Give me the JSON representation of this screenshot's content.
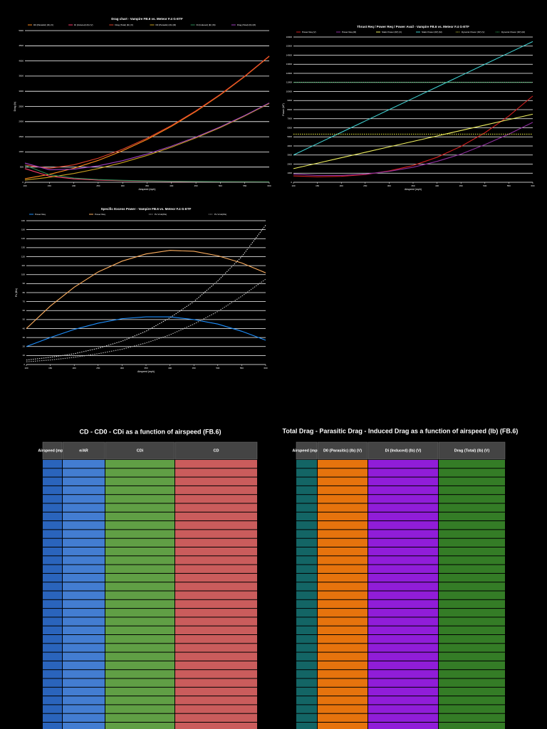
{
  "chart_data": [
    {
      "type": "line",
      "title": "Drag chart - Vampire FB.6 vs. Meteor F.4 G-ETF",
      "x_label": "Airspeed (mph)",
      "y_label": "Drag (lb)",
      "x": [
        100,
        150,
        200,
        250,
        300,
        350,
        400,
        450,
        500,
        550,
        600
      ],
      "xlim": [
        100,
        600
      ],
      "xticks": [
        100,
        150,
        200,
        250,
        300,
        350,
        400,
        450,
        500,
        550,
        600
      ],
      "ylim": [
        0,
        5000
      ],
      "yticks": [
        0,
        500,
        1000,
        1500,
        2000,
        2500,
        3000,
        3500,
        4000,
        4500,
        5000
      ],
      "grid": true,
      "series": [
        {
          "name": "D0 (Parasitic) (lb) (V)",
          "color": "#ff8c1a",
          "values": [
            115,
            259,
            461,
            720,
            1038,
            1412,
            1844,
            2334,
            2882,
            3487,
            4150
          ]
        },
        {
          "name": "Di (Induced) (lb) (V)",
          "color": "#ff3b6b",
          "values": [
            450,
            200,
            113,
            72,
            50,
            37,
            28,
            22,
            18,
            15,
            13
          ]
        },
        {
          "name": "Drag (Total) (lb) (V)",
          "color": "#e0402a",
          "values": [
            565,
            459,
            574,
            792,
            1088,
            1449,
            1872,
            2356,
            2900,
            3502,
            4163
          ]
        },
        {
          "name": "D0 (Parasitic) (lb) (M)",
          "color": "#c8a020",
          "values": [
            72,
            163,
            289,
            451,
            650,
            885,
            1156,
            1463,
            1806,
            2185,
            2600
          ]
        },
        {
          "name": "Di (Induced) (lb) (M)",
          "color": "#2e8b57",
          "values": [
            560,
            249,
            140,
            90,
            62,
            46,
            35,
            28,
            22,
            19,
            16
          ]
        },
        {
          "name": "Drag (Total) (lb) (M)",
          "color": "#a040c0",
          "values": [
            632,
            412,
            429,
            541,
            712,
            931,
            1191,
            1491,
            1828,
            2204,
            2616
          ]
        }
      ]
    },
    {
      "type": "line",
      "title": "Thrust Req / Power Req / Power Avail - Vampire FB.6 vs. Meteor F.4 G-ETF",
      "x_label": "Airspeed (mph)",
      "y_label": "Power (hP)",
      "x": [
        100,
        150,
        200,
        250,
        300,
        350,
        400,
        450,
        500,
        550,
        600
      ],
      "xlim": [
        100,
        600
      ],
      "xticks": [
        100,
        150,
        200,
        250,
        300,
        350,
        400,
        450,
        500,
        550,
        600
      ],
      "ylim": [
        0,
        16000
      ],
      "yticks": [
        0,
        1000,
        2000,
        3000,
        4000,
        5000,
        6000,
        7000,
        8000,
        9000,
        10000,
        11000,
        12000,
        13000,
        14000,
        15000,
        16000
      ],
      "grid": true,
      "series": [
        {
          "name": "Power Req (V)",
          "color": "#d02020",
          "values": [
            700,
            600,
            650,
            850,
            1250,
            1850,
            2750,
            3950,
            5450,
            7300,
            9500
          ]
        },
        {
          "name": "Power Req (M)",
          "color": "#9030a0",
          "values": [
            900,
            750,
            750,
            900,
            1200,
            1650,
            2300,
            3100,
            4150,
            5300,
            6600
          ]
        },
        {
          "name": "Static Power (hP) (V)",
          "color": "#f0f060",
          "values": [
            1500,
            2100,
            2700,
            3300,
            3900,
            4500,
            5100,
            5700,
            6300,
            6900,
            7500
          ]
        },
        {
          "name": "Static Power (hP) (M)",
          "color": "#40d0d0",
          "values": [
            3000,
            4250,
            5500,
            6750,
            8000,
            9250,
            10500,
            11750,
            13000,
            14250,
            15500
          ]
        },
        {
          "name": "Dynamic Power (hP) (V)",
          "color": "#e0e040",
          "style": "dotted",
          "values": [
            5300,
            5300,
            5300,
            5300,
            5300,
            5300,
            5300,
            5300,
            5300,
            5300,
            5300
          ]
        },
        {
          "name": "Dynamic Power (hP) (M)",
          "color": "#30c060",
          "style": "dotted",
          "values": [
            11000,
            11000,
            11000,
            11000,
            11000,
            11000,
            11000,
            11000,
            11000,
            11000,
            11000
          ]
        }
      ]
    },
    {
      "type": "line",
      "title": "Specific Excess Power - Vampire FB.6 vs. Meteor F.4 G-ETF",
      "x_label": "Airspeed (mph)",
      "y_label": "Ps (ft/s)",
      "x": [
        100,
        150,
        200,
        250,
        300,
        350,
        400,
        450,
        500,
        550,
        600
      ],
      "xlim": [
        100,
        600
      ],
      "xticks": [
        100,
        150,
        200,
        250,
        300,
        350,
        400,
        450,
        500,
        550,
        600
      ],
      "ylim": [
        0,
        160
      ],
      "yticks": [
        0,
        10,
        20,
        30,
        40,
        50,
        60,
        70,
        80,
        90,
        100,
        110,
        120,
        130,
        140,
        150,
        160
      ],
      "grid": true,
      "series": [
        {
          "name": "Power Req",
          "color": "#1e90ff",
          "values": [
            20,
            30,
            39,
            46,
            51,
            53,
            53,
            50,
            45,
            37,
            27
          ]
        },
        {
          "name": "Power Req ",
          "color": "#ffb060",
          "values": [
            40,
            65,
            86,
            103,
            115,
            123,
            127,
            126,
            121,
            113,
            102
          ]
        },
        {
          "name": "Ps Vmlo(ft/s)",
          "color": "#dddddd",
          "style": "dotted",
          "values": [
            5,
            8,
            12,
            18,
            26,
            37,
            52,
            70,
            93,
            120,
            155
          ]
        },
        {
          "name": "Ps Vmlo(ft/s) ",
          "color": "#bbbbbb",
          "style": "dotted",
          "values": [
            3,
            5,
            8,
            12,
            17,
            24,
            33,
            45,
            59,
            76,
            95
          ]
        }
      ]
    }
  ],
  "tables": [
    {
      "title": "CD - CD0 - CDi as a function of airspeed (FB.6)",
      "headers": [
        "Airspeed (mph)",
        "e/AR",
        "CDi",
        "CD"
      ],
      "colors": [
        "#2f6fd0",
        "#4a8be8",
        "#6ab04c",
        "#e06666"
      ]
    },
    {
      "title": "Total Drag - Parasitic Drag - Induced Drag as a function of airspeed (lb) (FB.6)",
      "headers": [
        "Airspeed (mph)",
        "D0 (Parasitic) (lb) (V)",
        "Di (Induced) (lb) (V)",
        "Drag (Total) (lb) (V)"
      ],
      "colors": [
        "#157070",
        "#ff7f0e",
        "#a020f0",
        "#3a8a2a"
      ]
    }
  ]
}
